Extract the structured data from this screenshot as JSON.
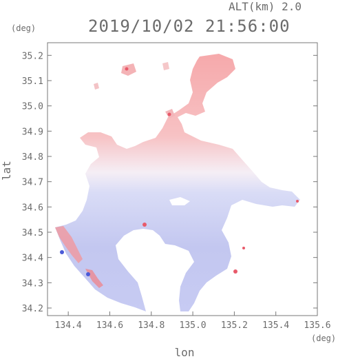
{
  "header": {
    "altitude_label": "ALT(km) 2.0",
    "timestamp": "2019/10/02 21:56:00"
  },
  "axes": {
    "x_unit": "(deg)",
    "y_unit": "(deg)",
    "x_label": "lon",
    "y_label": "lat",
    "x_range": [
      134.3,
      135.6
    ],
    "y_range": [
      34.17,
      35.25
    ],
    "x_ticks": [
      {
        "value": 134.4,
        "label": "134.4"
      },
      {
        "value": 134.6,
        "label": "134.6"
      },
      {
        "value": 134.8,
        "label": "134.8"
      },
      {
        "value": 135.0,
        "label": "135.0"
      },
      {
        "value": 135.2,
        "label": "135.2"
      },
      {
        "value": 135.4,
        "label": "135.4"
      },
      {
        "value": 135.6,
        "label": "135.6"
      }
    ],
    "y_ticks": [
      {
        "value": 34.2,
        "label": "34.2"
      },
      {
        "value": 34.3,
        "label": "34.3"
      },
      {
        "value": 34.4,
        "label": "34.4"
      },
      {
        "value": 34.5,
        "label": "34.5"
      },
      {
        "value": 34.6,
        "label": "34.6"
      },
      {
        "value": 34.7,
        "label": "34.7"
      },
      {
        "value": 34.8,
        "label": "34.8"
      },
      {
        "value": 34.9,
        "label": "34.9"
      },
      {
        "value": 35.0,
        "label": "35.0"
      },
      {
        "value": 35.1,
        "label": "35.1"
      },
      {
        "value": 35.2,
        "label": "35.2"
      }
    ]
  },
  "colors": {
    "axis": "#777777",
    "positive": "#f4aaaa",
    "neutral": "#f4f2fb",
    "negative": "#b9bff0",
    "strong_positive": "#e85a6a",
    "strong_negative": "#4a5ad8"
  }
}
